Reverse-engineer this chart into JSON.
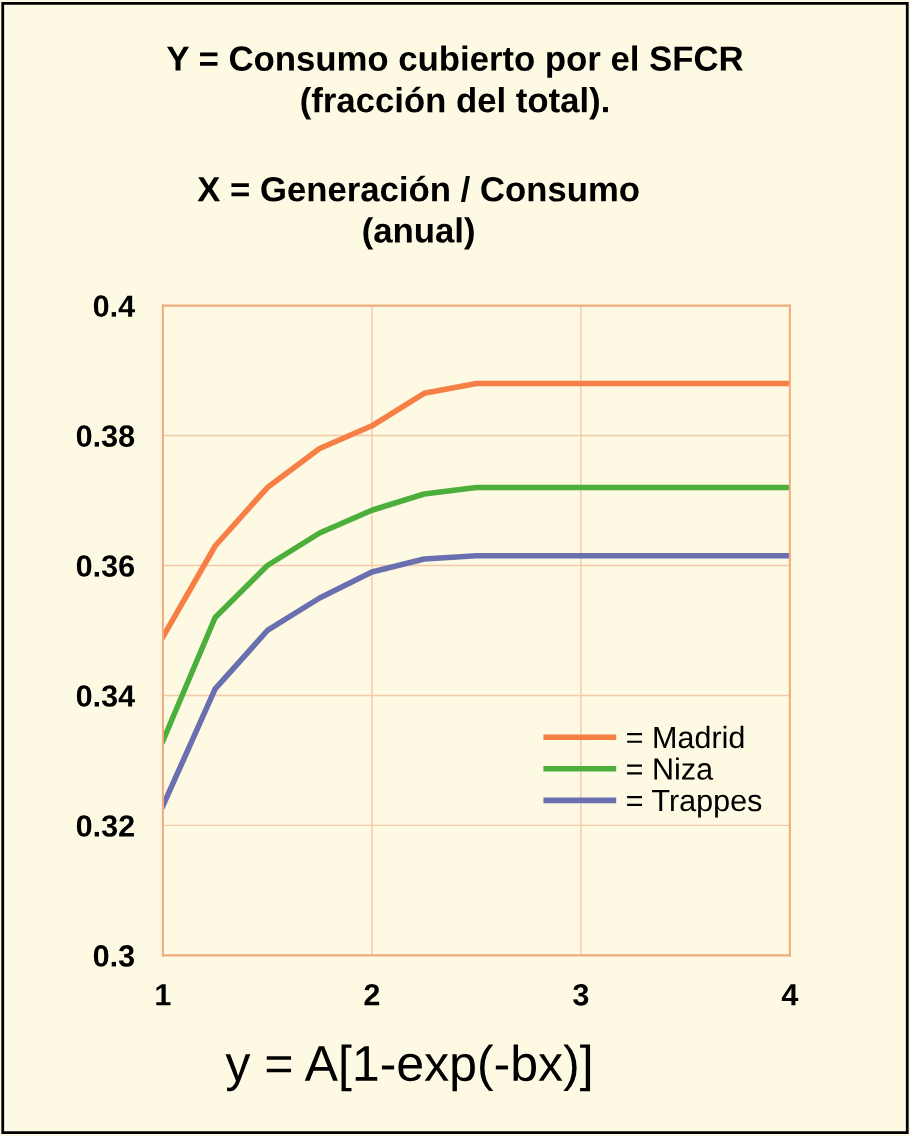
{
  "chart_data": {
    "type": "line",
    "title": "Y = Consumo cubierto por el SFCR\n(fracción del total).",
    "subtitle": "X = Generación / Consumo\n(anual)",
    "x": [
      1.0,
      1.25,
      1.5,
      1.75,
      2.0,
      2.25,
      2.5,
      3.0,
      3.5,
      4.0
    ],
    "series": [
      {
        "name": "= Madrid",
        "color": "#f57f45",
        "values": [
          0.349,
          0.363,
          0.372,
          0.378,
          0.3815,
          0.3865,
          0.388,
          0.388,
          0.388,
          0.388
        ]
      },
      {
        "name": "= Niza",
        "color": "#4caf3c",
        "values": [
          0.333,
          0.352,
          0.36,
          0.365,
          0.3685,
          0.371,
          0.372,
          0.372,
          0.372,
          0.372
        ]
      },
      {
        "name": "= Trappes",
        "color": "#6a6fb0",
        "values": [
          0.323,
          0.341,
          0.35,
          0.355,
          0.359,
          0.361,
          0.3615,
          0.3615,
          0.3615,
          0.3615
        ]
      }
    ],
    "xlim": [
      1,
      4
    ],
    "xticks": [
      1,
      2,
      3,
      4
    ],
    "ylim": [
      0.3,
      0.4
    ],
    "yticks": [
      0.3,
      0.32,
      0.34,
      0.36,
      0.38,
      0.4
    ],
    "grid": true,
    "legend": "bottom right",
    "annotations": [
      "y = A[1-exp(-bx)]"
    ]
  }
}
